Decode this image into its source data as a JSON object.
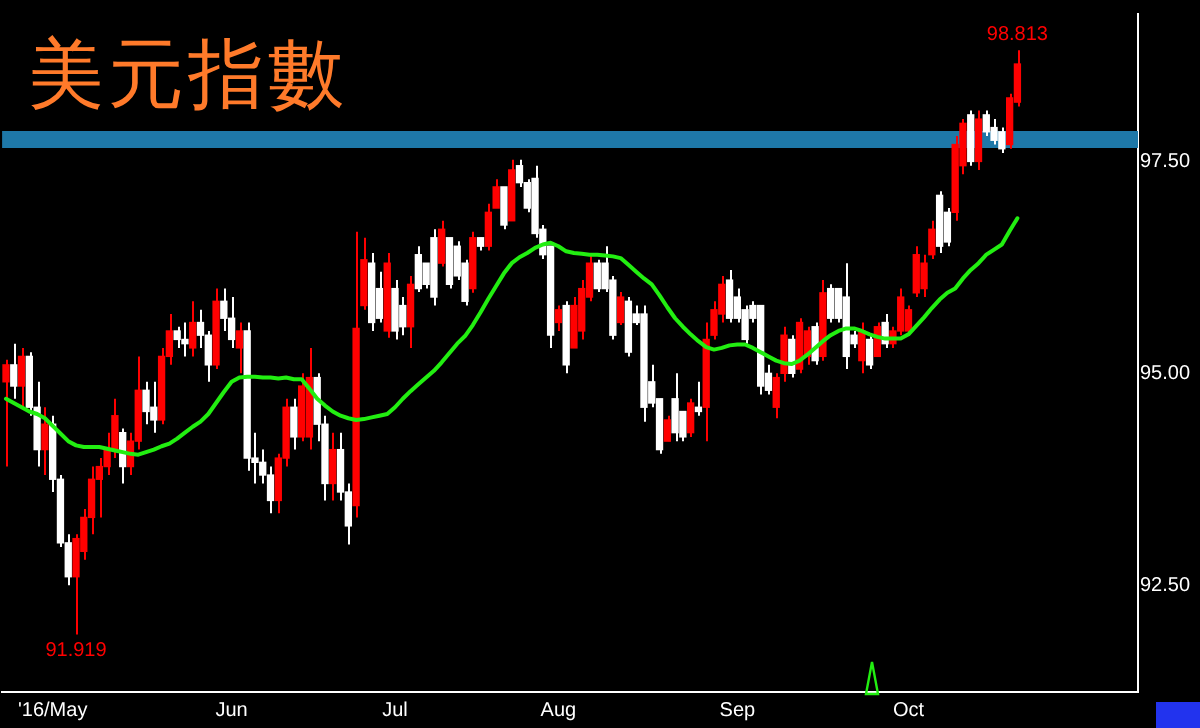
{
  "chart_data": {
    "type": "candlestick",
    "title": "美元指數",
    "categories": [
      null,
      null,
      null,
      null,
      null,
      null,
      "'16/May",
      null,
      null,
      null,
      null,
      null,
      null,
      null,
      null,
      null,
      null,
      null,
      null,
      null,
      null,
      null,
      null,
      null,
      null,
      null,
      null,
      null,
      null,
      "Jun",
      null,
      null,
      null,
      null,
      null,
      null,
      null,
      null,
      null,
      null,
      null,
      null,
      null,
      null,
      null,
      null,
      null,
      null,
      null,
      null,
      "Jul",
      null,
      null,
      null,
      null,
      null,
      null,
      null,
      null,
      null,
      null,
      null,
      null,
      null,
      null,
      null,
      null,
      null,
      null,
      null,
      null,
      "Aug",
      null,
      null,
      null,
      null,
      null,
      null,
      null,
      null,
      null,
      null,
      null,
      null,
      null,
      null,
      null,
      null,
      null,
      null,
      null,
      null,
      null,
      null,
      "Sep",
      null,
      null,
      null,
      null,
      null,
      null,
      null,
      null,
      null,
      null,
      null,
      null,
      null,
      null,
      null,
      null,
      null,
      null,
      null,
      null,
      null,
      "Oct",
      null,
      null,
      null,
      null,
      null,
      null,
      null,
      null,
      null,
      null,
      null,
      null,
      null,
      null,
      null,
      null,
      null,
      null,
      null,
      null,
      null,
      null,
      null,
      null,
      null,
      null,
      null,
      null,
      null
    ],
    "ohlc": [
      [
        94.9,
        95.16,
        93.9,
        95.1
      ],
      [
        95.1,
        95.35,
        94.7,
        94.85
      ],
      [
        94.85,
        95.3,
        94.6,
        95.2
      ],
      [
        95.2,
        95.25,
        94.5,
        94.6
      ],
      [
        94.6,
        94.9,
        93.9,
        94.1
      ],
      [
        94.1,
        94.6,
        93.8,
        94.4
      ],
      [
        94.4,
        94.5,
        93.6,
        93.75
      ],
      [
        93.75,
        93.8,
        92.95,
        93.0
      ],
      [
        93.0,
        93.1,
        92.5,
        92.6
      ],
      [
        92.6,
        93.1,
        91.919,
        93.05
      ],
      [
        92.9,
        93.4,
        92.8,
        93.3
      ],
      [
        93.3,
        93.9,
        93.1,
        93.75
      ],
      [
        93.75,
        94.0,
        93.3,
        93.9
      ],
      [
        93.9,
        94.3,
        93.8,
        94.1
      ],
      [
        94.1,
        94.7,
        94.0,
        94.5
      ],
      [
        94.3,
        94.35,
        93.7,
        93.9
      ],
      [
        93.9,
        94.3,
        93.8,
        94.2
      ],
      [
        94.2,
        95.2,
        94.1,
        94.8
      ],
      [
        94.8,
        94.9,
        94.4,
        94.55
      ],
      [
        94.6,
        94.9,
        94.3,
        94.45
      ],
      [
        94.45,
        95.3,
        94.4,
        95.2
      ],
      [
        95.2,
        95.7,
        95.1,
        95.5
      ],
      [
        95.5,
        95.55,
        95.3,
        95.4
      ],
      [
        95.4,
        95.6,
        95.2,
        95.35
      ],
      [
        95.3,
        95.85,
        95.2,
        95.6
      ],
      [
        95.6,
        95.75,
        95.3,
        95.45
      ],
      [
        95.45,
        95.5,
        94.9,
        95.1
      ],
      [
        95.1,
        96.0,
        95.05,
        95.85
      ],
      [
        95.85,
        96.0,
        95.5,
        95.65
      ],
      [
        95.65,
        95.9,
        95.3,
        95.4
      ],
      [
        95.3,
        95.6,
        95.0,
        95.5
      ],
      [
        95.5,
        95.6,
        93.85,
        94.0
      ],
      [
        94.0,
        94.3,
        93.7,
        93.95
      ],
      [
        93.95,
        94.1,
        93.7,
        93.8
      ],
      [
        93.8,
        93.9,
        93.35,
        93.5
      ],
      [
        93.5,
        94.05,
        93.35,
        94.0
      ],
      [
        94.0,
        94.7,
        93.9,
        94.6
      ],
      [
        94.6,
        94.7,
        94.1,
        94.25
      ],
      [
        94.25,
        95.0,
        94.2,
        94.85
      ],
      [
        94.25,
        95.3,
        94.1,
        94.95
      ],
      [
        94.95,
        95.0,
        94.2,
        94.4
      ],
      [
        94.4,
        94.5,
        93.5,
        93.7
      ],
      [
        93.7,
        94.3,
        93.5,
        94.1
      ],
      [
        94.1,
        94.3,
        93.5,
        93.6
      ],
      [
        93.6,
        93.7,
        92.98,
        93.2
      ],
      [
        93.44,
        96.67,
        93.3,
        95.53
      ],
      [
        95.8,
        96.6,
        95.75,
        96.34
      ],
      [
        96.3,
        96.42,
        95.5,
        95.6
      ],
      [
        96.0,
        96.2,
        95.6,
        95.65
      ],
      [
        95.5,
        96.42,
        95.42,
        96.3
      ],
      [
        96.0,
        96.1,
        95.4,
        95.5
      ],
      [
        95.8,
        95.9,
        95.45,
        95.55
      ],
      [
        95.55,
        96.15,
        95.3,
        96.05
      ],
      [
        96.4,
        96.5,
        95.96,
        96.0
      ],
      [
        96.3,
        96.3,
        96.0,
        96.05
      ],
      [
        96.6,
        96.7,
        95.8,
        95.9
      ],
      [
        96.3,
        96.8,
        96.26,
        96.7
      ],
      [
        96.6,
        96.6,
        96.0,
        96.05
      ],
      [
        96.5,
        96.56,
        96.1,
        96.15
      ],
      [
        96.3,
        96.34,
        95.8,
        95.85
      ],
      [
        96.0,
        96.67,
        95.95,
        96.6
      ],
      [
        96.6,
        96.6,
        96.45,
        96.5
      ],
      [
        96.5,
        97.0,
        96.45,
        96.9
      ],
      [
        96.95,
        97.29,
        96.95,
        97.2
      ],
      [
        97.2,
        97.2,
        96.7,
        96.75
      ],
      [
        96.8,
        97.52,
        96.8,
        97.4
      ],
      [
        97.45,
        97.52,
        97.2,
        97.25
      ],
      [
        97.25,
        97.29,
        96.9,
        96.95
      ],
      [
        97.3,
        97.45,
        96.6,
        96.65
      ],
      [
        96.7,
        96.75,
        96.35,
        96.4
      ],
      [
        96.5,
        96.5,
        95.3,
        95.45
      ],
      [
        95.6,
        95.8,
        95.5,
        95.75
      ],
      [
        95.8,
        95.85,
        95.0,
        95.1
      ],
      [
        95.3,
        95.9,
        95.3,
        95.8
      ],
      [
        95.5,
        96.1,
        95.4,
        96.0
      ],
      [
        95.9,
        96.4,
        95.85,
        96.3
      ],
      [
        96.3,
        96.34,
        95.96,
        96.0
      ],
      [
        96.3,
        96.5,
        95.96,
        96.0
      ],
      [
        96.1,
        96.15,
        95.4,
        95.45
      ],
      [
        95.6,
        95.96,
        95.57,
        95.9
      ],
      [
        95.85,
        95.9,
        95.2,
        95.25
      ],
      [
        95.7,
        95.8,
        95.57,
        95.6
      ],
      [
        95.7,
        95.8,
        94.43,
        94.6
      ],
      [
        94.9,
        95.1,
        94.6,
        94.65
      ],
      [
        94.7,
        94.7,
        94.05,
        94.1
      ],
      [
        94.2,
        94.5,
        94.2,
        94.45
      ],
      [
        94.7,
        95.0,
        94.2,
        94.3
      ],
      [
        94.55,
        94.55,
        94.2,
        94.25
      ],
      [
        94.3,
        94.7,
        94.25,
        94.65
      ],
      [
        94.6,
        94.9,
        94.5,
        94.55
      ],
      [
        94.6,
        95.6,
        94.2,
        95.4
      ],
      [
        95.45,
        95.85,
        95.4,
        95.75
      ],
      [
        95.7,
        96.15,
        95.6,
        96.05
      ],
      [
        96.1,
        96.22,
        95.6,
        95.65
      ],
      [
        95.9,
        96.0,
        95.6,
        95.65
      ],
      [
        95.75,
        95.8,
        95.35,
        95.4
      ],
      [
        95.8,
        95.85,
        95.6,
        95.65
      ],
      [
        95.8,
        95.8,
        94.75,
        94.85
      ],
      [
        95.0,
        95.1,
        94.75,
        94.8
      ],
      [
        94.6,
        95.0,
        94.47,
        94.95
      ],
      [
        95.0,
        95.55,
        94.9,
        95.45
      ],
      [
        95.4,
        95.45,
        94.95,
        95.0
      ],
      [
        95.05,
        95.65,
        95.0,
        95.6
      ],
      [
        95.2,
        95.55,
        95.1,
        95.5
      ],
      [
        95.55,
        95.6,
        95.1,
        95.15
      ],
      [
        95.2,
        96.1,
        95.15,
        95.95
      ],
      [
        96.0,
        96.05,
        95.6,
        95.65
      ],
      [
        96.0,
        96.0,
        95.6,
        95.65
      ],
      [
        95.9,
        96.3,
        95.05,
        95.2
      ],
      [
        95.45,
        95.5,
        95.3,
        95.35
      ],
      [
        95.15,
        95.6,
        95.0,
        95.5
      ],
      [
        95.4,
        95.45,
        95.05,
        95.1
      ],
      [
        95.2,
        95.6,
        95.2,
        95.55
      ],
      [
        95.6,
        95.7,
        95.3,
        95.35
      ],
      [
        95.35,
        95.55,
        95.3,
        95.5
      ],
      [
        95.5,
        96.0,
        95.45,
        95.9
      ],
      [
        95.5,
        95.8,
        95.45,
        95.75
      ],
      [
        95.95,
        96.5,
        95.9,
        96.4
      ],
      [
        96.0,
        96.4,
        95.9,
        96.3
      ],
      [
        96.4,
        96.8,
        96.35,
        96.7
      ],
      [
        97.1,
        97.15,
        96.42,
        96.5
      ],
      [
        96.9,
        96.95,
        96.5,
        96.55
      ],
      [
        96.9,
        97.8,
        96.8,
        97.7
      ],
      [
        97.45,
        98.0,
        97.35,
        97.95
      ],
      [
        98.05,
        98.1,
        97.45,
        97.5
      ],
      [
        97.5,
        98.1,
        97.4,
        98.0
      ],
      [
        98.05,
        98.1,
        97.8,
        97.85
      ],
      [
        97.9,
        98.0,
        97.7,
        97.75
      ],
      [
        97.85,
        97.9,
        97.6,
        97.65
      ],
      [
        97.7,
        98.3,
        97.65,
        98.25
      ],
      [
        98.2,
        98.813,
        98.15,
        98.65
      ],
      null,
      null,
      null,
      null,
      null,
      null,
      null,
      null,
      null,
      null,
      null,
      null,
      null,
      null,
      null
    ],
    "colors": [
      "#ff0000",
      "#ffffff",
      "#ff0000",
      "#ffffff",
      "#ffffff",
      "#ff0000",
      "#ffffff",
      "#ffffff",
      "#ffffff",
      "#ff0000",
      "#ff0000",
      "#ff0000",
      "#ff0000",
      "#ff0000",
      "#ff0000",
      "#ffffff",
      "#ff0000",
      "#ff0000",
      "#ffffff",
      "#ffffff",
      "#ff0000",
      "#ff0000",
      "#ffffff",
      "#ffffff",
      "#ff0000",
      "#ffffff",
      "#ffffff",
      "#ff0000",
      "#ffffff",
      "#ffffff",
      "#ff0000",
      "#ffffff",
      "#ffffff",
      "#ffffff",
      "#ffffff",
      "#ff0000",
      "#ff0000",
      "#ffffff",
      "#ff0000",
      "#ff0000",
      "#ffffff",
      "#ffffff",
      "#ff0000",
      "#ffffff",
      "#ffffff",
      "#ff0000",
      "#ff0000",
      "#ffffff",
      "#ffffff",
      "#ff0000",
      "#ffffff",
      "#ffffff",
      "#ff0000",
      "#ffffff",
      "#ffffff",
      "#ffffff",
      "#ff0000",
      "#ffffff",
      "#ffffff",
      "#ffffff",
      "#ff0000",
      "#ffffff",
      "#ff0000",
      "#ff0000",
      "#ffffff",
      "#ff0000",
      "#ffffff",
      "#ffffff",
      "#ffffff",
      "#ffffff",
      "#ffffff",
      "#ff0000",
      "#ffffff",
      "#ff0000",
      "#ff0000",
      "#ff0000",
      "#ffffff",
      "#ffffff",
      "#ffffff",
      "#ff0000",
      "#ffffff",
      "#ffffff",
      "#ffffff",
      "#ffffff",
      "#ffffff",
      "#ff0000",
      "#ffffff",
      "#ffffff",
      "#ff0000",
      "#ffffff",
      "#ff0000",
      "#ff0000",
      "#ff0000",
      "#ffffff",
      "#ffffff",
      "#ffffff",
      "#ffffff",
      "#ffffff",
      "#ffffff",
      "#ff0000",
      "#ff0000",
      "#ffffff",
      "#ff0000",
      "#ff0000",
      "#ffffff",
      "#ff0000",
      "#ffffff",
      "#ffffff",
      "#ffffff",
      "#ffffff",
      "#ff0000",
      "#ffffff",
      "#ff0000",
      "#ffffff",
      "#ff0000",
      "#ff0000",
      "#ff0000",
      "#ff0000",
      "#ff0000",
      "#ff0000",
      "#ffffff",
      "#ffffff",
      "#ff0000",
      "#ff0000",
      "#ffffff",
      "#ff0000",
      "#ffffff",
      "#ffffff",
      "#ffffff",
      "#ff0000",
      "#ff0000",
      null,
      null,
      null,
      null,
      null,
      null,
      null,
      null,
      null,
      null,
      null,
      null,
      null,
      null,
      null
    ],
    "series": [
      {
        "type": "line",
        "color": "#22ee11",
        "values": [
          94.7,
          94.65,
          94.6,
          94.55,
          94.52,
          94.47,
          94.38,
          94.29,
          94.2,
          94.15,
          94.13,
          94.13,
          94.13,
          94.11,
          94.09,
          94.07,
          94.05,
          94.04,
          94.07,
          94.1,
          94.14,
          94.17,
          94.23,
          94.3,
          94.37,
          94.43,
          94.52,
          94.65,
          94.78,
          94.9,
          94.95,
          94.96,
          94.96,
          94.95,
          94.95,
          94.94,
          94.95,
          94.93,
          94.93,
          94.82,
          94.7,
          94.62,
          94.55,
          94.5,
          94.47,
          94.45,
          94.46,
          94.48,
          94.5,
          94.52,
          94.6,
          94.7,
          94.79,
          94.87,
          94.95,
          95.03,
          95.13,
          95.24,
          95.35,
          95.44,
          95.57,
          95.72,
          95.88,
          96.03,
          96.18,
          96.3,
          96.37,
          96.42,
          96.48,
          96.52,
          96.54,
          96.5,
          96.44,
          96.42,
          96.41,
          96.4,
          96.4,
          96.39,
          96.38,
          96.36,
          96.28,
          96.2,
          96.12,
          96.05,
          95.92,
          95.78,
          95.65,
          95.55,
          95.46,
          95.38,
          95.31,
          95.28,
          95.3,
          95.33,
          95.34,
          95.34,
          95.3,
          95.25,
          95.2,
          95.15,
          95.12,
          95.11,
          95.15,
          95.22,
          95.3,
          95.38,
          95.45,
          95.5,
          95.53,
          95.53,
          95.5,
          95.46,
          95.43,
          95.41,
          95.41,
          95.41,
          95.46,
          95.56,
          95.66,
          95.77,
          95.87,
          95.95,
          96.0,
          96.12,
          96.22,
          96.3,
          96.4,
          96.46,
          96.52,
          96.68,
          96.83,
          null,
          null,
          null,
          null,
          null,
          null,
          null,
          null,
          null,
          null,
          null,
          null,
          null,
          null,
          null
        ]
      }
    ],
    "ylim": [
      91.24,
      99.24
    ],
    "yticks": [
      {
        "value": 92.5,
        "label": "92.50"
      },
      {
        "value": 95,
        "label": "95.00"
      },
      {
        "value": 97.5,
        "label": "97.50"
      }
    ],
    "bands": [
      {
        "axis": "y",
        "from": 97.66,
        "to": 97.86,
        "color": "#1e78a8"
      }
    ],
    "annotations": [
      {
        "text": "91.919",
        "y": 91.919
      },
      {
        "text": "98.813",
        "y": 98.813
      }
    ]
  }
}
